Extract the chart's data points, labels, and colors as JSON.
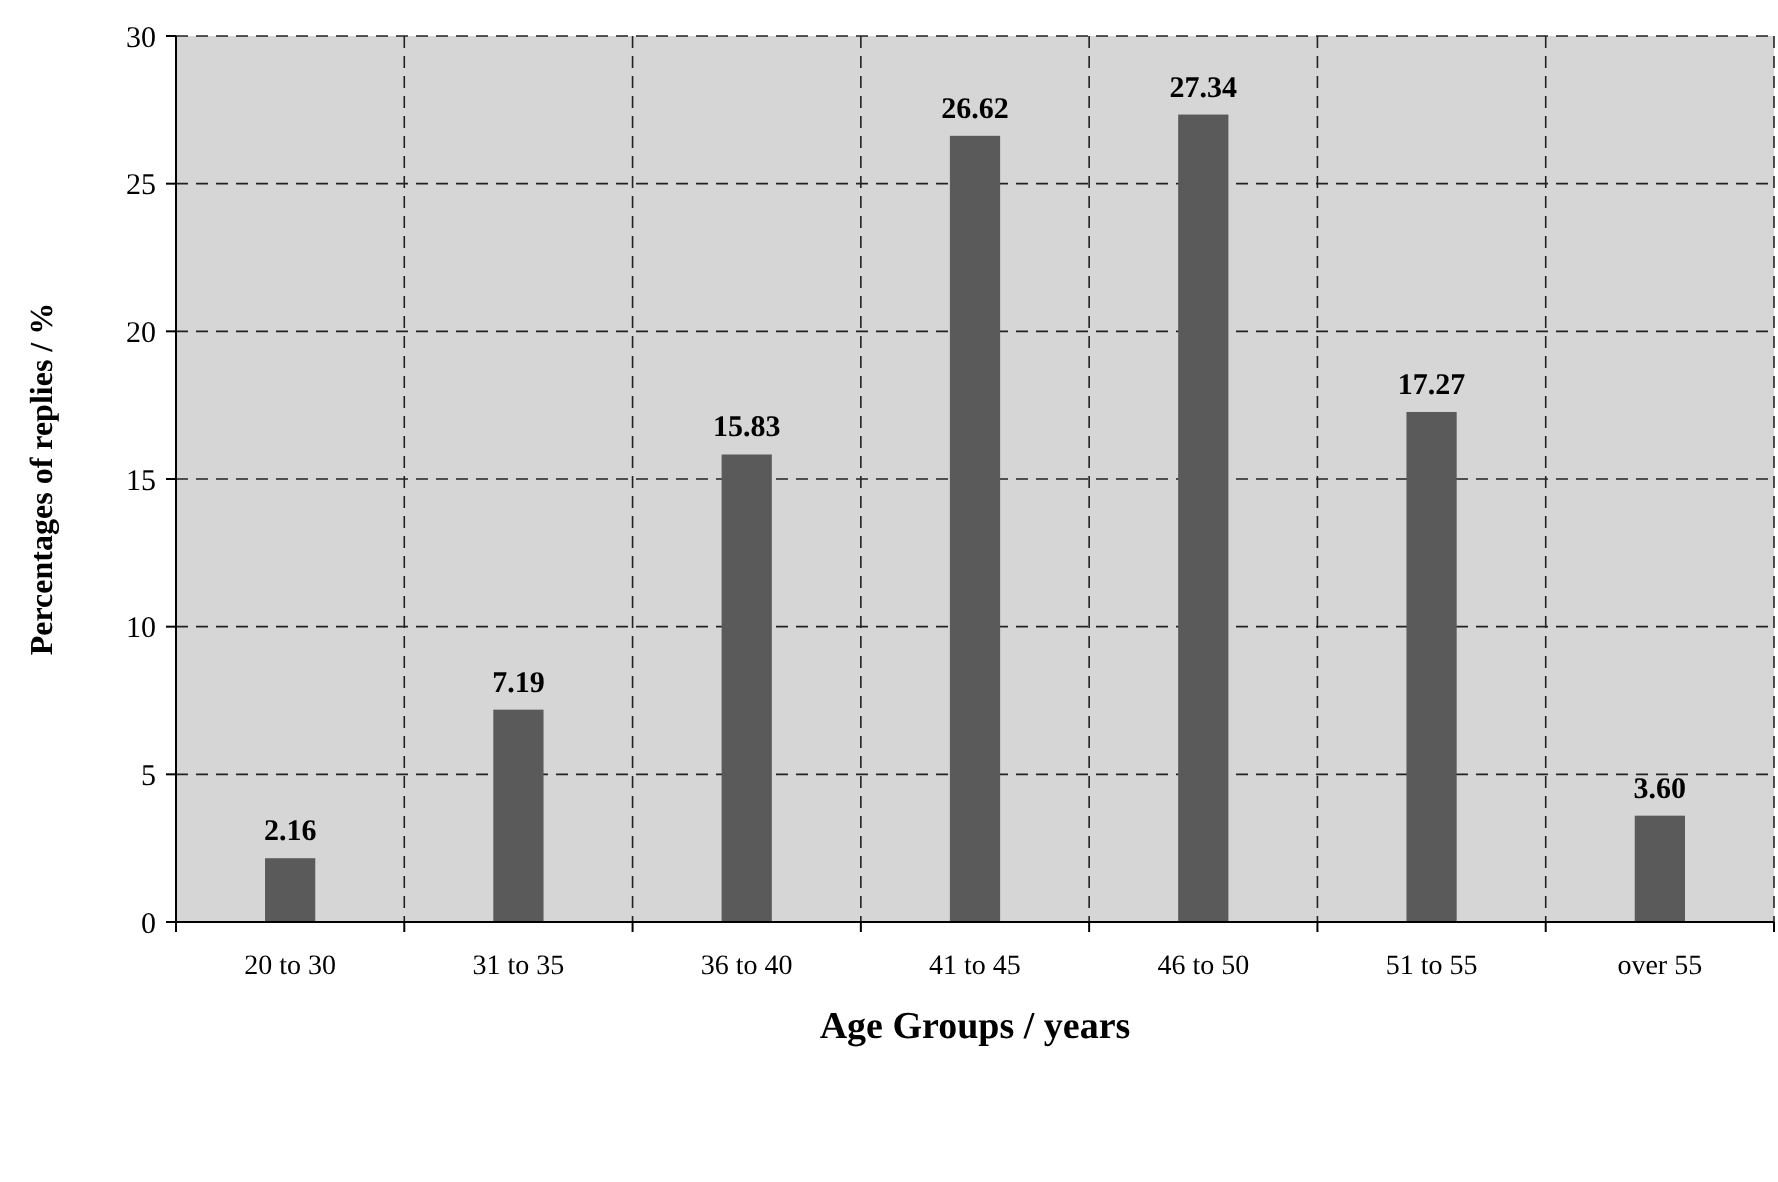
{
  "chart_data": {
    "type": "bar",
    "xlabel": "Age Groups / years",
    "ylabel": "Percentages of replies / %",
    "categories": [
      "20 to 30",
      "31 to 35",
      "36 to 40",
      "41 to 45",
      "46 to 50",
      "51 to 55",
      "over 55"
    ],
    "values": [
      2.16,
      7.19,
      15.83,
      26.62,
      27.34,
      17.27,
      3.6
    ],
    "value_labels": [
      "2.16",
      "7.19",
      "15.83",
      "26.62",
      "27.34",
      "17.27",
      "3.60"
    ],
    "color": "#5a5a5a",
    "ylim": [
      0,
      30
    ],
    "yticks": [
      0,
      5,
      10,
      15,
      20,
      25,
      30
    ],
    "grid": true
  }
}
